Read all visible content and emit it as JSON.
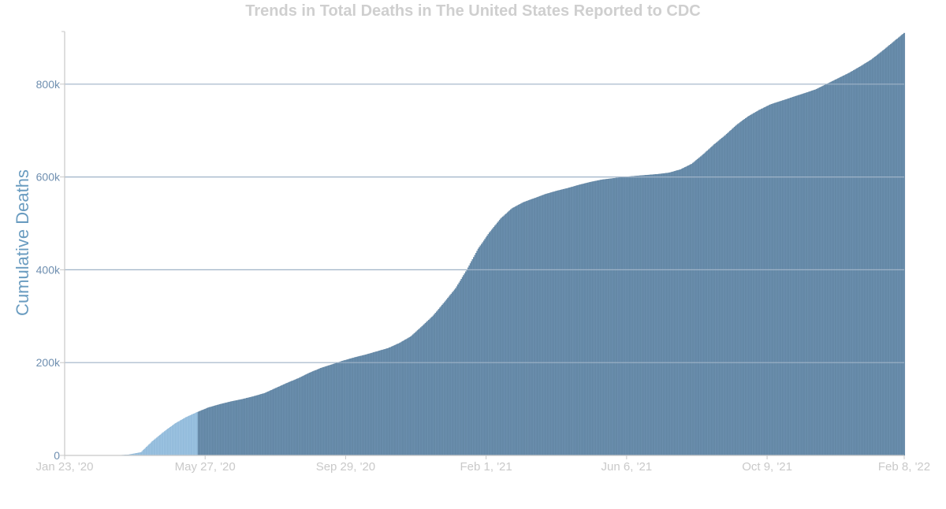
{
  "title": "Trends in Total Deaths in The United States Reported to CDC",
  "colors": {
    "bar": "#6b8fae",
    "bar_stroke": "#5b7e9b",
    "highlight": "#9cc3e1",
    "grid": "#9fb3c7",
    "axis": "#c8c8c8",
    "ylabel": "#6a9cc0",
    "ytick": "#6f8fb0",
    "xtick": "#c9c9c9",
    "title": "#cfcfcf"
  },
  "chart_data": {
    "type": "bar",
    "title": "Trends in Total Deaths in The United States Reported to CDC",
    "xlabel": "",
    "ylabel": "Cumulative Deaths",
    "x_start": "2020-01-23",
    "x_end": "2022-02-08",
    "ylim": [
      0,
      910000
    ],
    "yticks": [
      0,
      200000,
      400000,
      600000,
      800000
    ],
    "ytick_labels": [
      "0",
      "200k",
      "400k",
      "600k",
      "800k"
    ],
    "xtick_labels": [
      "Jan 23, '20",
      "May 27, '20",
      "Sep 29, '20",
      "Feb 1, '21",
      "Jun 6, '21",
      "Oct 9, '21",
      "Feb 8, '22"
    ],
    "xtick_dates": [
      "2020-01-23",
      "2020-05-27",
      "2020-09-29",
      "2021-02-01",
      "2021-06-06",
      "2021-10-09",
      "2022-02-08"
    ],
    "grid": true,
    "legend": "none",
    "highlight_range": [
      "2020-03-10",
      "2020-05-20"
    ],
    "series": [
      {
        "x": [
          "2020-01-23",
          "2020-02-29",
          "2020-03-10",
          "2020-03-20",
          "2020-03-31",
          "2020-04-10",
          "2020-04-20",
          "2020-04-30",
          "2020-05-10",
          "2020-05-20",
          "2020-05-30",
          "2020-06-09",
          "2020-06-19",
          "2020-06-29",
          "2020-07-09",
          "2020-07-19",
          "2020-07-29",
          "2020-08-08",
          "2020-08-18",
          "2020-08-28",
          "2020-09-07",
          "2020-09-17",
          "2020-09-27",
          "2020-10-07",
          "2020-10-17",
          "2020-10-27",
          "2020-11-06",
          "2020-11-16",
          "2020-11-26",
          "2020-12-06",
          "2020-12-16",
          "2020-12-26",
          "2021-01-05",
          "2021-01-15",
          "2021-01-25",
          "2021-02-04",
          "2021-02-14",
          "2021-02-24",
          "2021-03-06",
          "2021-03-16",
          "2021-03-26",
          "2021-04-05",
          "2021-04-15",
          "2021-04-25",
          "2021-05-05",
          "2021-05-15",
          "2021-05-25",
          "2021-06-04",
          "2021-06-14",
          "2021-06-24",
          "2021-07-04",
          "2021-07-14",
          "2021-07-24",
          "2021-08-03",
          "2021-08-13",
          "2021-08-23",
          "2021-09-02",
          "2021-09-12",
          "2021-09-22",
          "2021-10-02",
          "2021-10-12",
          "2021-10-22",
          "2021-11-01",
          "2021-11-11",
          "2021-11-21",
          "2021-12-01",
          "2021-12-11",
          "2021-12-21",
          "2021-12-31",
          "2022-01-10",
          "2022-01-20",
          "2022-01-30",
          "2022-02-08"
        ],
        "values": [
          0,
          0,
          100,
          1500,
          6500,
          30000,
          50000,
          68000,
          82000,
          93000,
          103000,
          110000,
          116000,
          121000,
          127000,
          134000,
          145000,
          156000,
          166000,
          178000,
          188000,
          196000,
          204000,
          211000,
          217000,
          224000,
          231000,
          242000,
          256000,
          278000,
          301000,
          330000,
          360000,
          400000,
          445000,
          480000,
          510000,
          532000,
          545000,
          554000,
          563000,
          570000,
          576000,
          583000,
          589000,
          594000,
          597000,
          600000,
          602000,
          604000,
          606000,
          609000,
          616000,
          628000,
          648000,
          670000,
          690000,
          712000,
          730000,
          744000,
          756000,
          764000,
          772000,
          780000,
          788000,
          800000,
          812000,
          824000,
          838000,
          853000,
          872000,
          892000,
          910000
        ]
      }
    ]
  }
}
